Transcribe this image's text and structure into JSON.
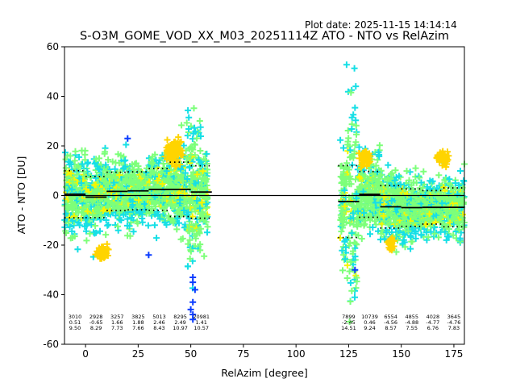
{
  "chart_data": {
    "type": "scatter",
    "plot_date": "Plot date: 2025-11-15 14:14:14",
    "title": "S-O3M_GOME_VOD_XX_M03_20251114Z ATO - NTO vs RelAzim",
    "xlabel": "RelAzim [degree]",
    "ylabel": "ATO - NTO [DU]",
    "xlim": [
      -10,
      180
    ],
    "ylim": [
      -60,
      60
    ],
    "xticks": [
      0,
      25,
      50,
      75,
      100,
      125,
      150,
      175
    ],
    "yticks": [
      -60,
      -40,
      -20,
      0,
      20,
      40,
      60
    ],
    "colors": {
      "dense": "#7dff7a",
      "mid": "#16dfe6",
      "high": "#f5f500",
      "hot": "#ffd400",
      "sparse": "#0a3cff",
      "line": "#000000"
    },
    "bins": [
      {
        "x0": -10,
        "x1": 0,
        "count": "3010",
        "mean": "0.51",
        "std": "9.50",
        "mean_v": 0.51,
        "std_v": 9.5
      },
      {
        "x0": 0,
        "x1": 10,
        "count": "2928",
        "mean": "-0.65",
        "std": "8.29",
        "mean_v": -0.65,
        "std_v": 8.29
      },
      {
        "x0": 10,
        "x1": 20,
        "count": "3257",
        "mean": "1.66",
        "std": "7.73",
        "mean_v": 1.66,
        "std_v": 7.73
      },
      {
        "x0": 20,
        "x1": 30,
        "count": "3825",
        "mean": "1.88",
        "std": "7.66",
        "mean_v": 1.88,
        "std_v": 7.66
      },
      {
        "x0": 30,
        "x1": 40,
        "count": "5013",
        "mean": "2.46",
        "std": "8.43",
        "mean_v": 2.46,
        "std_v": 8.43
      },
      {
        "x0": 40,
        "x1": 50,
        "count": "8295",
        "mean": "2.49",
        "std": "10.97",
        "mean_v": 2.49,
        "std_v": 10.97
      },
      {
        "x0": 50,
        "x1": 60,
        "count": "20981",
        "mean": "1.41",
        "std": "10.57",
        "mean_v": 1.41,
        "std_v": 10.57
      },
      {
        "x0": 120,
        "x1": 130,
        "count": "7899",
        "mean": "-2.45",
        "std": "14.51",
        "mean_v": -2.45,
        "std_v": 14.51
      },
      {
        "x0": 130,
        "x1": 140,
        "count": "10739",
        "mean": "0.46",
        "std": "9.24",
        "mean_v": 0.46,
        "std_v": 9.24
      },
      {
        "x0": 140,
        "x1": 150,
        "count": "6554",
        "mean": "-4.56",
        "std": "8.57",
        "mean_v": -4.56,
        "std_v": 8.57
      },
      {
        "x0": 150,
        "x1": 160,
        "count": "4855",
        "mean": "-4.88",
        "std": "7.55",
        "mean_v": -4.88,
        "std_v": 7.55
      },
      {
        "x0": 160,
        "x1": 170,
        "count": "4028",
        "mean": "-4.77",
        "std": "6.76",
        "mean_v": -4.77,
        "std_v": 6.76
      },
      {
        "x0": 170,
        "x1": 180,
        "count": "3645",
        "mean": "-4.76",
        "std": "7.83",
        "mean_v": -4.76,
        "std_v": 7.83
      }
    ],
    "segments": [
      {
        "x_start": -10,
        "x_end": 58
      },
      {
        "x_start": 121,
        "x_end": 180
      }
    ],
    "outliers_sparse": [
      {
        "x": 51,
        "y": -33
      },
      {
        "x": 51,
        "y": -35
      },
      {
        "x": 52,
        "y": -38
      },
      {
        "x": 51,
        "y": -43
      },
      {
        "x": 50,
        "y": -46
      },
      {
        "x": 51,
        "y": -48
      },
      {
        "x": 51,
        "y": -50
      },
      {
        "x": 20,
        "y": 23
      },
      {
        "x": 30,
        "y": -24
      },
      {
        "x": 128,
        "y": -30
      }
    ]
  }
}
